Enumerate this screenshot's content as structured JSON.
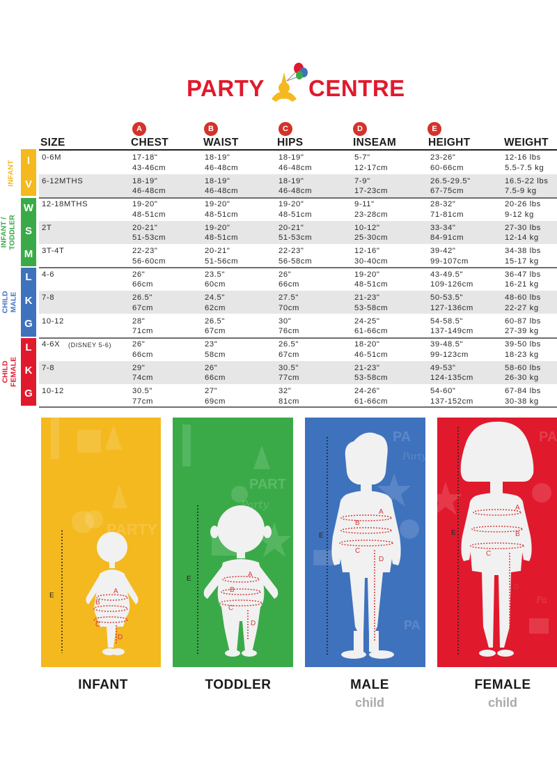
{
  "brand": {
    "word1": "PARTY",
    "word2": "CENTRE",
    "colors": {
      "red": "#e1192d",
      "yellow": "#f4b91f",
      "green": "#3aaa48",
      "blue": "#3f72bd"
    }
  },
  "columns": {
    "size": "SIZE",
    "chest": {
      "badge": "A",
      "label": "CHEST"
    },
    "waist": {
      "badge": "B",
      "label": "WAIST"
    },
    "hips": {
      "badge": "C",
      "label": "HIPS"
    },
    "inseam": {
      "badge": "D",
      "label": "INSEAM"
    },
    "height": {
      "badge": "E",
      "label": "HEIGHT"
    },
    "weight": "WEIGHT"
  },
  "groups": {
    "infant": {
      "label": "INFANT",
      "letters": [
        "I",
        "V"
      ]
    },
    "toddler": {
      "label": "INFANT /\nTODDLER",
      "letters": [
        "W",
        "S",
        "M"
      ]
    },
    "male": {
      "label": "CHILD\nMALE",
      "letters": [
        "L",
        "K",
        "G"
      ]
    },
    "female": {
      "label": "CHILD\nFEMALE",
      "letters": [
        "L",
        "K",
        "G"
      ]
    }
  },
  "rows": [
    {
      "size": "0-6M",
      "chest": "17-18\"\n43-46cm",
      "waist": "18-19\"\n46-48cm",
      "hips": "18-19\"\n46-48cm",
      "inseam": "5-7\"\n12-17cm",
      "height": "23-26\"\n60-66cm",
      "weight": "12-16 lbs\n5.5-7.5 kg"
    },
    {
      "size": "6-12MTHS",
      "chest": "18-19\"\n46-48cm",
      "waist": "18-19\"\n46-48cm",
      "hips": "18-19\"\n46-48cm",
      "inseam": "7-9\"\n17-23cm",
      "height": "26.5-29.5\"\n67-75cm",
      "weight": "16.5-22 lbs\n7.5-9 kg"
    },
    {
      "size": "12-18MTHS",
      "chest": "19-20\"\n48-51cm",
      "waist": "19-20\"\n48-51cm",
      "hips": "19-20\"\n48-51cm",
      "inseam": "9-11\"\n23-28cm",
      "height": "28-32\"\n71-81cm",
      "weight": "20-26 lbs\n9-12 kg"
    },
    {
      "size": "2T",
      "chest": "20-21\"\n51-53cm",
      "waist": "19-20\"\n48-51cm",
      "hips": "20-21\"\n51-53cm",
      "inseam": "10-12\"\n25-30cm",
      "height": "33-34\"\n84-91cm",
      "weight": "27-30 lbs\n12-14 kg"
    },
    {
      "size": "3T-4T",
      "chest": "22-23\"\n56-60cm",
      "waist": "20-21\"\n51-56cm",
      "hips": "22-23\"\n56-58cm",
      "inseam": "12-16\"\n30-40cm",
      "height": "39-42\"\n99-107cm",
      "weight": "34-38 lbs\n15-17 kg"
    },
    {
      "size": "4-6",
      "chest": "26\"\n66cm",
      "waist": "23.5\"\n60cm",
      "hips": "26\"\n66cm",
      "inseam": "19-20\"\n48-51cm",
      "height": "43-49.5\"\n109-126cm",
      "weight": "36-47 lbs\n16-21 kg"
    },
    {
      "size": "7-8",
      "chest": "26.5\"\n67cm",
      "waist": "24.5\"\n62cm",
      "hips": "27.5\"\n70cm",
      "inseam": "21-23\"\n53-58cm",
      "height": "50-53.5\"\n127-136cm",
      "weight": "48-60 lbs\n22-27 kg"
    },
    {
      "size": "10-12",
      "chest": "28\"\n71cm",
      "waist": "26.5\"\n67cm",
      "hips": "30\"\n76cm",
      "inseam": "24-25\"\n61-66cm",
      "height": "54-58.5\"\n137-149cm",
      "weight": "60-87 lbs\n27-39 kg"
    },
    {
      "size": "4-6X",
      "size_note": "(DISNEY 5-6)",
      "chest": "26\"\n66cm",
      "waist": "23\"\n58cm",
      "hips": "26.5\"\n67cm",
      "inseam": "18-20\"\n46-51cm",
      "height": "39-48.5\"\n99-123cm",
      "weight": "39-50 lbs\n18-23 kg"
    },
    {
      "size": "7-8",
      "chest": "29\"\n74cm",
      "waist": "26\"\n66cm",
      "hips": "30.5\"\n77cm",
      "inseam": "21-23\"\n53-58cm",
      "height": "49-53\"\n124-135cm",
      "weight": "58-60 lbs\n26-30 kg"
    },
    {
      "size": "10-12",
      "chest": "30.5\"\n77cm",
      "waist": "27\"\n69cm",
      "hips": "32\"\n81cm",
      "inseam": "24-26\"\n61-66cm",
      "height": "54-60\"\n137-152cm",
      "weight": "67-84 lbs\n30-38 kg"
    }
  ],
  "figures": {
    "infant": {
      "label": "INFANT"
    },
    "toddler": {
      "label": "TODDLER"
    },
    "male": {
      "label": "MALE",
      "sub": "child"
    },
    "female": {
      "label": "FEMALE",
      "sub": "child"
    },
    "markers": {
      "a": "A",
      "b": "B",
      "c": "C",
      "d": "D",
      "e": "E"
    },
    "bg_words": {
      "party": "PARTY",
      "party_script": "Party",
      "part": "PART",
      "par": "PAR",
      "pa": "PA",
      "pa2": "PA",
      "party_s2": "Party",
      "pa_s": "Pa"
    }
  }
}
